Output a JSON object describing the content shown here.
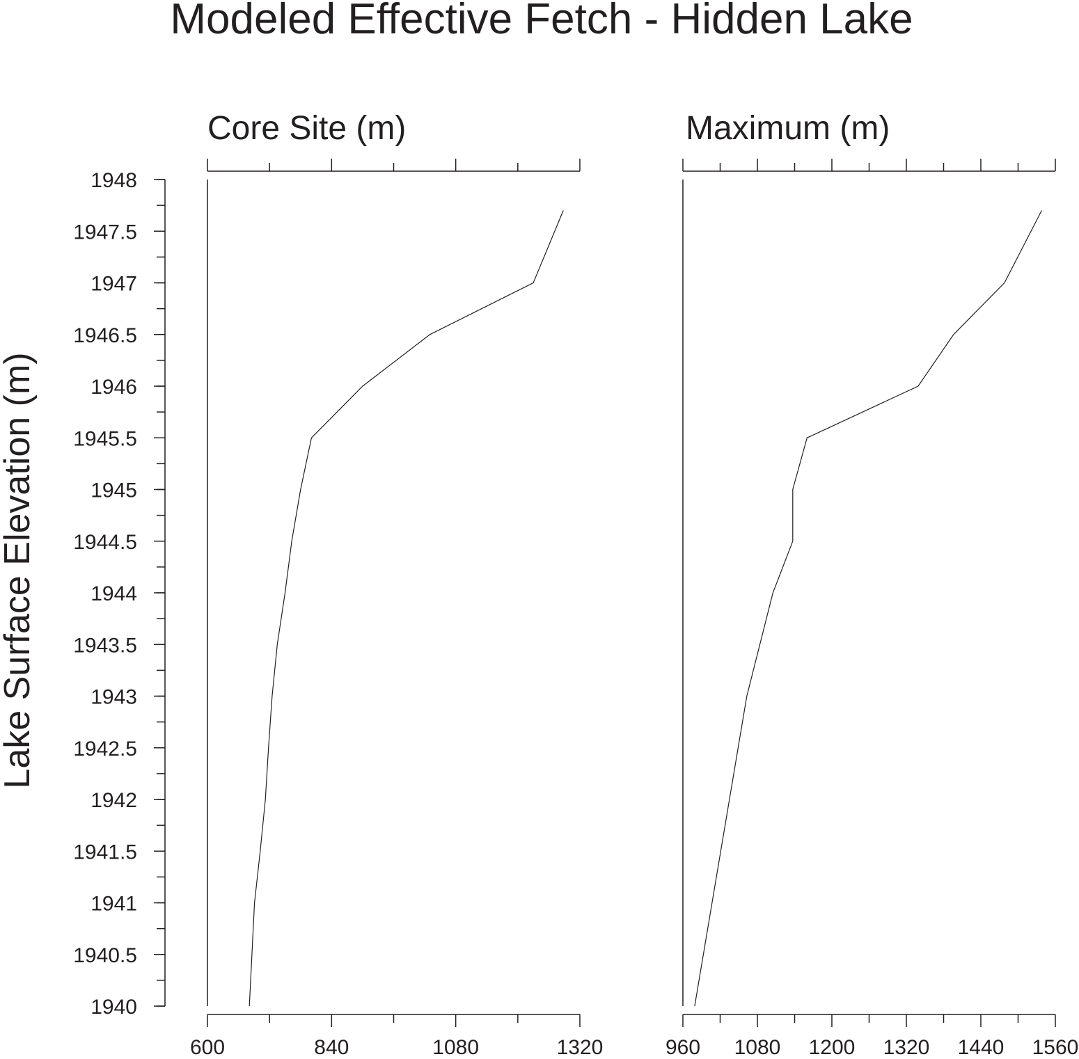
{
  "title": "Modeled Effective Fetch - Hidden Lake",
  "ylabel": "Lake Surface Elevation (m)",
  "chart_data": [
    {
      "type": "line",
      "title": "Core Site (m)",
      "xlim": [
        600,
        1320
      ],
      "x_ticks": [
        600,
        840,
        1080,
        1320
      ],
      "x_tick_labels": [
        "600",
        "840",
        "1080",
        "1320"
      ],
      "x_minor_step": 120,
      "ylim": [
        1940,
        1948
      ],
      "y_ticks": [
        1940,
        1940.5,
        1941,
        1941.5,
        1942,
        1942.5,
        1943,
        1943.5,
        1944,
        1944.5,
        1945,
        1945.5,
        1946,
        1946.5,
        1947,
        1947.5,
        1948
      ],
      "y_tick_labels": [
        "1940",
        "1940.5",
        "1941",
        "1941.5",
        "1942",
        "1942.5",
        "1943",
        "1943.5",
        "1944",
        "1944.5",
        "1945",
        "1945.5",
        "1946",
        "1946.5",
        "1947",
        "1947.5",
        "1948"
      ],
      "y_minor_step": 0.25,
      "series": [
        {
          "x": [
            681,
            686,
            691,
            702,
            712,
            718,
            725,
            735,
            750,
            763,
            780,
            801,
            900,
            1030,
            1230,
            1288
          ],
          "y": [
            1940,
            1940.5,
            1941,
            1941.5,
            1942,
            1942.5,
            1943,
            1943.5,
            1944,
            1944.5,
            1945,
            1945.5,
            1946,
            1946.5,
            1947,
            1947.7
          ]
        }
      ]
    },
    {
      "type": "line",
      "title": "Maximum (m)",
      "xlim": [
        960,
        1560
      ],
      "x_ticks": [
        960,
        1080,
        1200,
        1320,
        1440,
        1560
      ],
      "x_tick_labels": [
        "960",
        "1080",
        "1200",
        "1320",
        "1440",
        "1560"
      ],
      "x_minor_step": 60,
      "ylim": [
        1940,
        1948
      ],
      "series": [
        {
          "x": [
            979,
            1063,
            1105,
            1137,
            1137,
            1160,
            1339,
            1396,
            1478,
            1538
          ],
          "y": [
            1940,
            1943,
            1944,
            1944.5,
            1945,
            1945.5,
            1946,
            1946.5,
            1947,
            1947.7
          ]
        }
      ]
    }
  ]
}
